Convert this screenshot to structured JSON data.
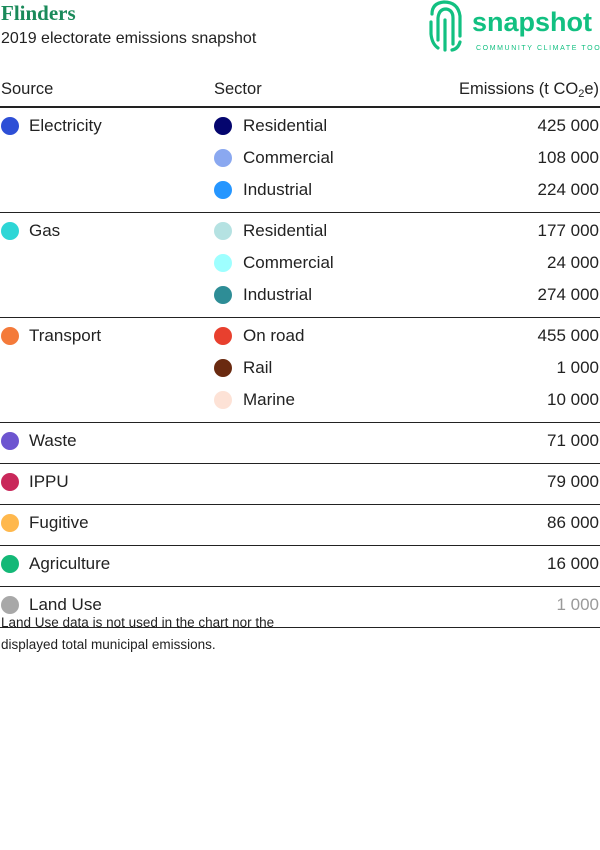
{
  "header": {
    "title": "Flinders",
    "subtitle": "2019 electorate emissions snapshot",
    "logo": {
      "word": "snapshot",
      "tagline": "COMMUNITY CLIMATE TOOL",
      "color": "#12c081"
    }
  },
  "columns": {
    "source": "Source",
    "sector": "Sector",
    "emissions_prefix": "Emissions (t CO",
    "emissions_sub": "2",
    "emissions_suffix": "e)"
  },
  "groups": [
    {
      "source": "Electricity",
      "color": "#2e4fd6",
      "sectors": [
        {
          "name": "Residential",
          "color": "#04056e",
          "value": "425 000"
        },
        {
          "name": "Commercial",
          "color": "#8aa8f0",
          "value": "108 000"
        },
        {
          "name": "Industrial",
          "color": "#2596ff",
          "value": "224 000"
        }
      ]
    },
    {
      "source": "Gas",
      "color": "#2ed6d6",
      "sectors": [
        {
          "name": "Residential",
          "color": "#b5e2e2",
          "value": "177 000"
        },
        {
          "name": "Commercial",
          "color": "#9effff",
          "value": "24 000"
        },
        {
          "name": "Industrial",
          "color": "#2e8d96",
          "value": "274 000"
        }
      ]
    },
    {
      "source": "Transport",
      "color": "#f47a3a",
      "sectors": [
        {
          "name": "On road",
          "color": "#e8402e",
          "value": "455 000"
        },
        {
          "name": "Rail",
          "color": "#6a2a10",
          "value": "1 000"
        },
        {
          "name": "Marine",
          "color": "#fde2d6",
          "value": "10 000"
        }
      ]
    },
    {
      "source": "Waste",
      "color": "#6d55d0",
      "value": "71 000"
    },
    {
      "source": "IPPU",
      "color": "#c9285a",
      "value": "79 000"
    },
    {
      "source": "Fugitive",
      "color": "#ffb84d",
      "value": "86 000"
    },
    {
      "source": "Agriculture",
      "color": "#14b877",
      "value": "16 000"
    },
    {
      "source": "Land Use",
      "color": "#a8a8a8",
      "value": "1 000",
      "muted": true
    }
  ],
  "footnote": "Land Use data is not used in the chart nor the displayed total municipal emissions."
}
